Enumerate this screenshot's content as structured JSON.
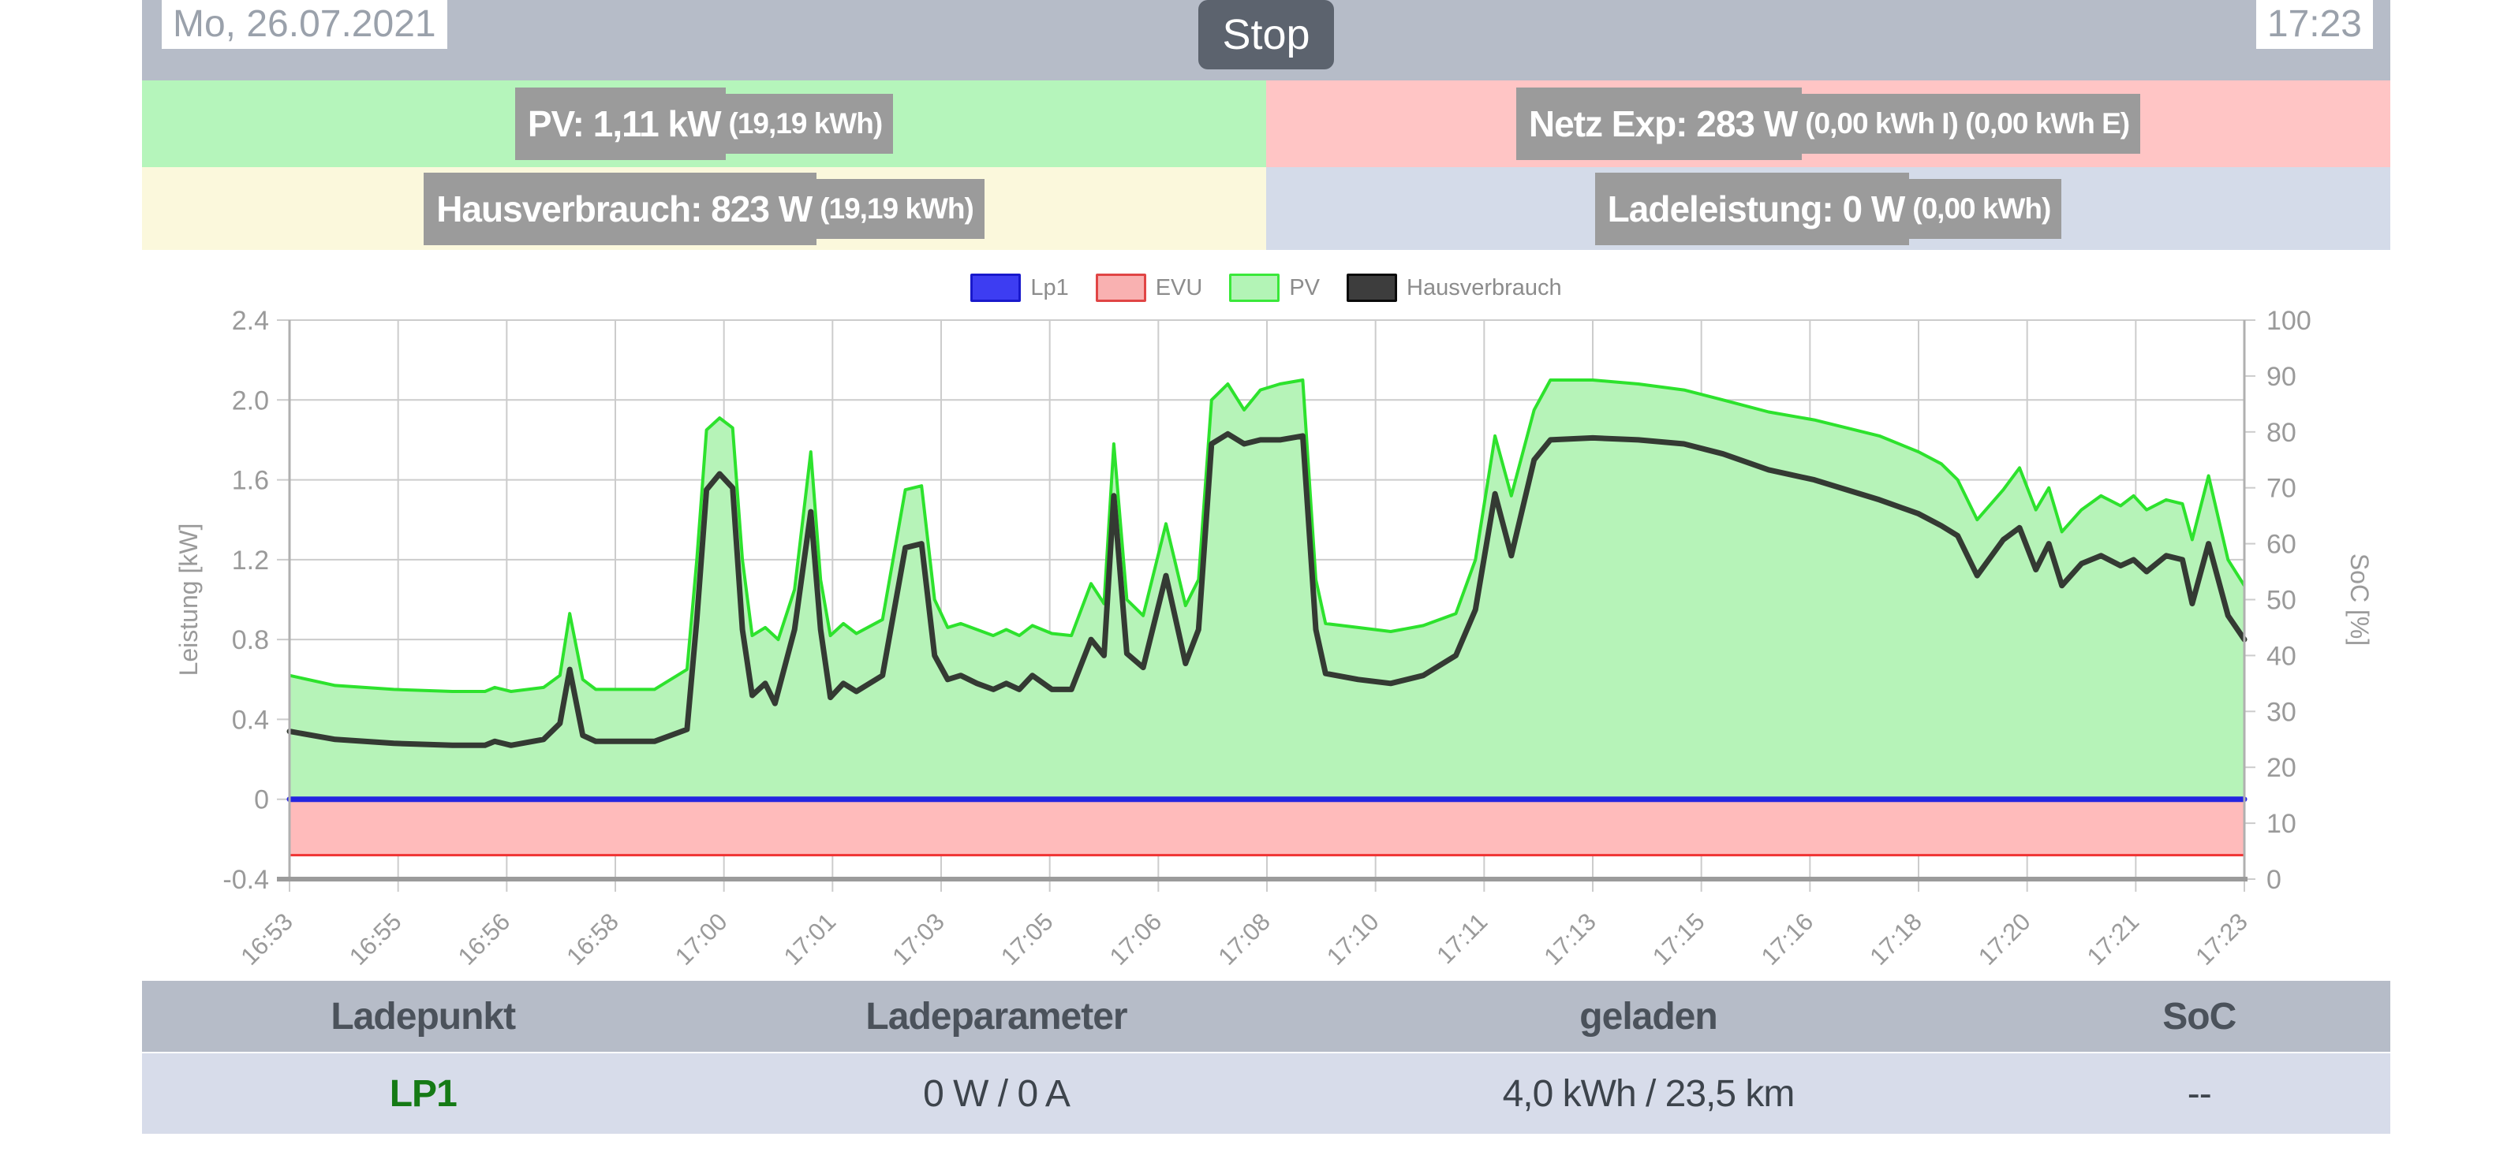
{
  "header": {
    "date": "Mo, 26.07.2021",
    "stop_label": "Stop",
    "time": "17:23"
  },
  "tiles": {
    "pv": {
      "main": "PV: 1,11 kW",
      "sub": "(19,19 kWh)",
      "bg": "#b5f5bb"
    },
    "grid": {
      "main": "Netz Exp: 283 W",
      "sub": "(0,00 kWh I) (0,00 kWh E)",
      "bg": "#ffc5c5"
    },
    "house": {
      "main": "Hausverbrauch: 823 W",
      "sub": "(19,19 kWh)",
      "bg": "#fbf8dc"
    },
    "charge": {
      "main": "Ladeleistung: 0 W",
      "sub": "(0,00 kWh)",
      "bg": "#d4dbe9"
    }
  },
  "legend": {
    "items": [
      {
        "label": "Lp1",
        "fill": "#3d3df2",
        "stroke": "#1919cc"
      },
      {
        "label": "EVU",
        "fill": "#f9b1b1",
        "stroke": "#e04545"
      },
      {
        "label": "PV",
        "fill": "#b3f4b6",
        "stroke": "#3ae83a"
      },
      {
        "label": "Hausverbrauch",
        "fill": "#3d3d3d",
        "stroke": "#0a0a0a"
      }
    ]
  },
  "chart_data": {
    "type": "area",
    "x_axis": {
      "unit": "minutes after 16:53",
      "range": [
        0,
        30
      ],
      "tick_labels": [
        "16:53",
        "16:55",
        "16:56",
        "16:58",
        "17:00",
        "17:01",
        "17:03",
        "17:05",
        "17:06",
        "17:08",
        "17:10",
        "17:11",
        "17:13",
        "17:15",
        "17:16",
        "17:18",
        "17:20",
        "17:21",
        "17:23"
      ]
    },
    "y_left": {
      "label": "Leistung [kW]",
      "range": [
        -0.4,
        2.4
      ],
      "tick_values": [
        2.4,
        2.0,
        1.6,
        1.2,
        0.8,
        0.4,
        0,
        -0.4
      ],
      "tick_labels": [
        "2.4",
        "2.0",
        "1.6",
        "1.2",
        "0.8",
        "0.4",
        "0",
        "-0.4"
      ]
    },
    "y_right": {
      "label": "SoC [%]",
      "range": [
        0,
        100
      ],
      "tick_labels": [
        "0",
        "10",
        "20",
        "30",
        "40",
        "50",
        "60",
        "70",
        "80",
        "90",
        "100"
      ]
    },
    "grid": true,
    "legend_position": "top",
    "series": [
      {
        "name": "EVU",
        "type": "area",
        "base": 0,
        "fill": "#ffbbbb",
        "line_color": "#f03333",
        "line_width": 3,
        "points": [
          [
            0,
            -0.28
          ],
          [
            30,
            -0.28
          ]
        ]
      },
      {
        "name": "PV",
        "type": "area",
        "base": 0,
        "fill": "#b6f3b8",
        "line_color": "#2de22d",
        "line_width": 4,
        "points": [
          [
            0,
            0.62
          ],
          [
            0.7,
            0.57
          ],
          [
            1.6,
            0.55
          ],
          [
            2.5,
            0.54
          ],
          [
            3,
            0.54
          ],
          [
            3.15,
            0.56
          ],
          [
            3.4,
            0.54
          ],
          [
            3.9,
            0.56
          ],
          [
            4.15,
            0.62
          ],
          [
            4.3,
            0.93
          ],
          [
            4.5,
            0.6
          ],
          [
            4.7,
            0.55
          ],
          [
            5.6,
            0.55
          ],
          [
            6.1,
            0.65
          ],
          [
            6.25,
            1.2
          ],
          [
            6.4,
            1.85
          ],
          [
            6.6,
            1.91
          ],
          [
            6.8,
            1.86
          ],
          [
            6.95,
            1.2
          ],
          [
            7.1,
            0.82
          ],
          [
            7.3,
            0.86
          ],
          [
            7.5,
            0.8
          ],
          [
            7.75,
            1.05
          ],
          [
            8,
            1.74
          ],
          [
            8.15,
            1.1
          ],
          [
            8.3,
            0.82
          ],
          [
            8.5,
            0.88
          ],
          [
            8.7,
            0.83
          ],
          [
            9.1,
            0.9
          ],
          [
            9.45,
            1.55
          ],
          [
            9.7,
            1.57
          ],
          [
            9.9,
            1
          ],
          [
            10.1,
            0.86
          ],
          [
            10.3,
            0.88
          ],
          [
            10.55,
            0.85
          ],
          [
            10.8,
            0.82
          ],
          [
            11,
            0.85
          ],
          [
            11.2,
            0.82
          ],
          [
            11.4,
            0.87
          ],
          [
            11.7,
            0.83
          ],
          [
            12,
            0.82
          ],
          [
            12.3,
            1.08
          ],
          [
            12.5,
            0.98
          ],
          [
            12.65,
            1.78
          ],
          [
            12.85,
            1
          ],
          [
            13.1,
            0.92
          ],
          [
            13.45,
            1.38
          ],
          [
            13.75,
            0.97
          ],
          [
            13.95,
            1.1
          ],
          [
            14.15,
            2
          ],
          [
            14.4,
            2.08
          ],
          [
            14.65,
            1.95
          ],
          [
            14.9,
            2.05
          ],
          [
            15.2,
            2.08
          ],
          [
            15.55,
            2.1
          ],
          [
            15.75,
            1.1
          ],
          [
            15.9,
            0.88
          ],
          [
            16.4,
            0.86
          ],
          [
            16.9,
            0.84
          ],
          [
            17.4,
            0.87
          ],
          [
            17.9,
            0.93
          ],
          [
            18.2,
            1.2
          ],
          [
            18.5,
            1.82
          ],
          [
            18.75,
            1.52
          ],
          [
            19.1,
            1.95
          ],
          [
            19.35,
            2.1
          ],
          [
            20,
            2.1
          ],
          [
            20.7,
            2.08
          ],
          [
            21.4,
            2.05
          ],
          [
            22,
            2
          ],
          [
            22.7,
            1.94
          ],
          [
            23.4,
            1.9
          ],
          [
            24.4,
            1.82
          ],
          [
            25,
            1.74
          ],
          [
            25.35,
            1.68
          ],
          [
            25.6,
            1.6
          ],
          [
            25.9,
            1.4
          ],
          [
            26.3,
            1.55
          ],
          [
            26.55,
            1.66
          ],
          [
            26.8,
            1.45
          ],
          [
            27,
            1.56
          ],
          [
            27.2,
            1.34
          ],
          [
            27.5,
            1.45
          ],
          [
            27.8,
            1.52
          ],
          [
            28.1,
            1.47
          ],
          [
            28.3,
            1.52
          ],
          [
            28.5,
            1.45
          ],
          [
            28.8,
            1.5
          ],
          [
            29.05,
            1.48
          ],
          [
            29.2,
            1.3
          ],
          [
            29.45,
            1.62
          ],
          [
            29.75,
            1.2
          ],
          [
            30,
            1.07
          ]
        ]
      },
      {
        "name": "Lp1",
        "type": "line",
        "color": "#2424e0",
        "line_width": 7,
        "points": [
          [
            0,
            0
          ],
          [
            30,
            0
          ]
        ]
      },
      {
        "name": "Hausverbrauch",
        "type": "line",
        "color": "#343a33",
        "line_width": 7,
        "points": [
          [
            0,
            0.34
          ],
          [
            0.7,
            0.3
          ],
          [
            1.6,
            0.28
          ],
          [
            2.5,
            0.27
          ],
          [
            3,
            0.27
          ],
          [
            3.15,
            0.29
          ],
          [
            3.4,
            0.27
          ],
          [
            3.9,
            0.3
          ],
          [
            4.15,
            0.38
          ],
          [
            4.3,
            0.65
          ],
          [
            4.5,
            0.32
          ],
          [
            4.7,
            0.29
          ],
          [
            5.6,
            0.29
          ],
          [
            6.1,
            0.35
          ],
          [
            6.25,
            0.9
          ],
          [
            6.4,
            1.55
          ],
          [
            6.6,
            1.63
          ],
          [
            6.8,
            1.56
          ],
          [
            6.95,
            0.85
          ],
          [
            7.1,
            0.52
          ],
          [
            7.3,
            0.58
          ],
          [
            7.45,
            0.48
          ],
          [
            7.75,
            0.85
          ],
          [
            8,
            1.44
          ],
          [
            8.15,
            0.85
          ],
          [
            8.3,
            0.51
          ],
          [
            8.5,
            0.58
          ],
          [
            8.7,
            0.54
          ],
          [
            9.1,
            0.62
          ],
          [
            9.45,
            1.26
          ],
          [
            9.7,
            1.28
          ],
          [
            9.9,
            0.72
          ],
          [
            10.1,
            0.6
          ],
          [
            10.3,
            0.62
          ],
          [
            10.55,
            0.58
          ],
          [
            10.8,
            0.55
          ],
          [
            11,
            0.58
          ],
          [
            11.2,
            0.55
          ],
          [
            11.4,
            0.62
          ],
          [
            11.7,
            0.55
          ],
          [
            12,
            0.55
          ],
          [
            12.3,
            0.8
          ],
          [
            12.5,
            0.72
          ],
          [
            12.65,
            1.52
          ],
          [
            12.85,
            0.73
          ],
          [
            13.1,
            0.66
          ],
          [
            13.45,
            1.12
          ],
          [
            13.75,
            0.68
          ],
          [
            13.95,
            0.85
          ],
          [
            14.15,
            1.78
          ],
          [
            14.4,
            1.83
          ],
          [
            14.65,
            1.78
          ],
          [
            14.9,
            1.8
          ],
          [
            15.2,
            1.8
          ],
          [
            15.55,
            1.82
          ],
          [
            15.75,
            0.85
          ],
          [
            15.9,
            0.63
          ],
          [
            16.4,
            0.6
          ],
          [
            16.9,
            0.58
          ],
          [
            17.4,
            0.62
          ],
          [
            17.9,
            0.72
          ],
          [
            18.2,
            0.95
          ],
          [
            18.5,
            1.53
          ],
          [
            18.75,
            1.22
          ],
          [
            19.1,
            1.7
          ],
          [
            19.35,
            1.8
          ],
          [
            20,
            1.81
          ],
          [
            20.7,
            1.8
          ],
          [
            21.4,
            1.78
          ],
          [
            22,
            1.73
          ],
          [
            22.7,
            1.65
          ],
          [
            23.4,
            1.6
          ],
          [
            24.4,
            1.5
          ],
          [
            25,
            1.43
          ],
          [
            25.35,
            1.37
          ],
          [
            25.6,
            1.32
          ],
          [
            25.9,
            1.12
          ],
          [
            26.3,
            1.3
          ],
          [
            26.55,
            1.36
          ],
          [
            26.8,
            1.15
          ],
          [
            27,
            1.28
          ],
          [
            27.2,
            1.07
          ],
          [
            27.5,
            1.18
          ],
          [
            27.8,
            1.22
          ],
          [
            28.1,
            1.17
          ],
          [
            28.3,
            1.2
          ],
          [
            28.5,
            1.14
          ],
          [
            28.8,
            1.22
          ],
          [
            29.05,
            1.2
          ],
          [
            29.2,
            0.98
          ],
          [
            29.45,
            1.28
          ],
          [
            29.75,
            0.92
          ],
          [
            30,
            0.8
          ]
        ]
      }
    ]
  },
  "table": {
    "headers": {
      "ladepunkt": "Ladepunkt",
      "ladeparameter": "Ladeparameter",
      "geladen": "geladen",
      "soc": "SoC"
    },
    "row": {
      "ladepunkt": "LP1",
      "ladeparameter": "0 W / 0 A",
      "geladen": "4,0 kWh / 23,5 km",
      "soc": "--",
      "lp_color": "#157a15"
    }
  }
}
